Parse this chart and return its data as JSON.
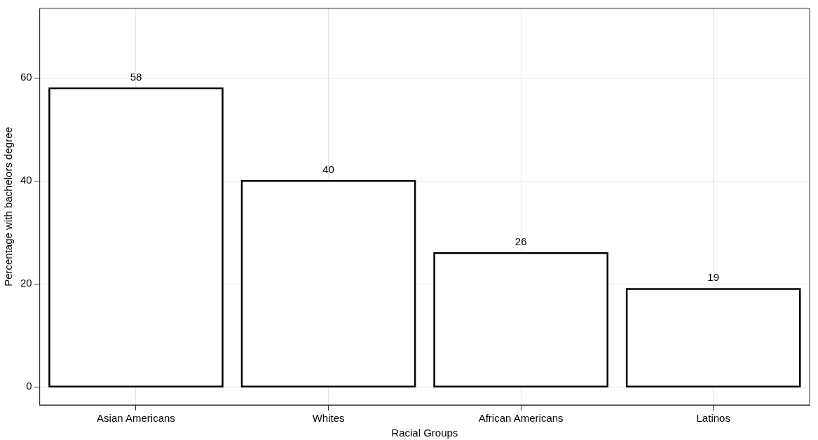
{
  "chart_data": {
    "type": "bar",
    "xlabel": "Racial Groups",
    "ylabel": "Percentage with bachelors degree",
    "categories": [
      "Asian Americans",
      "Whites",
      "African Americans",
      "Latinos"
    ],
    "values": [
      58,
      40,
      26,
      19
    ],
    "color": "#ffffff",
    "ylim": [
      -3.5,
      73.5
    ],
    "yticks": [
      0,
      20,
      40,
      60
    ],
    "grid": true,
    "legend": false,
    "data_labels": true
  }
}
